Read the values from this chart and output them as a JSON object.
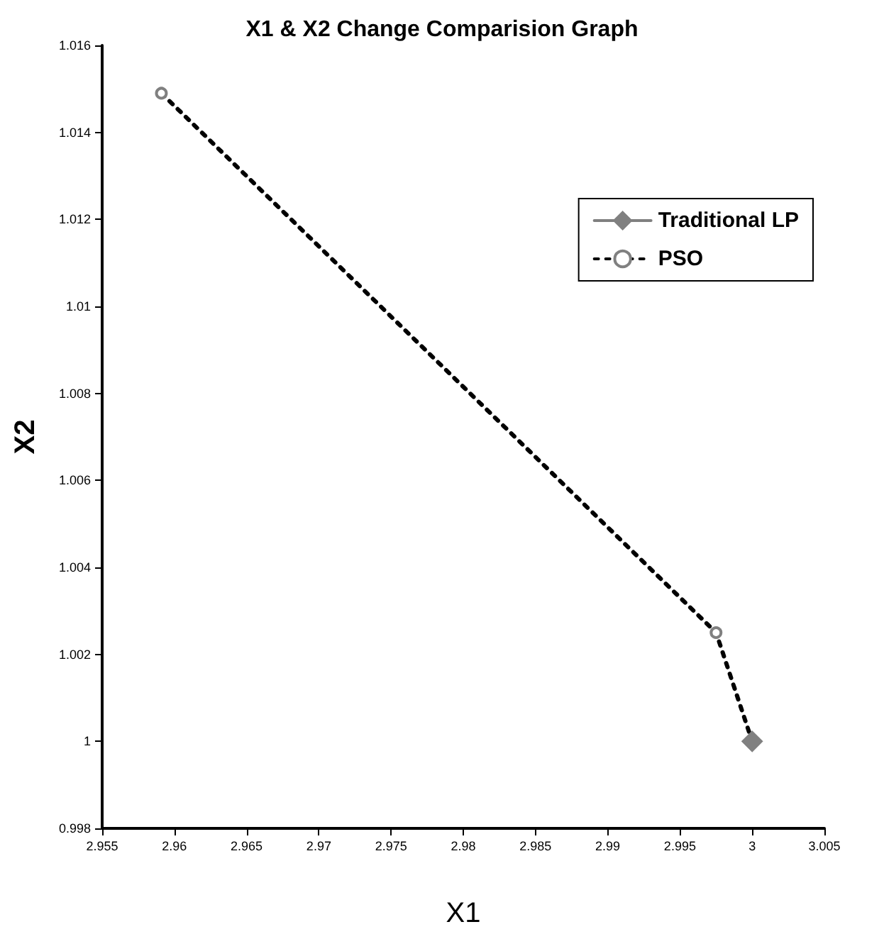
{
  "chart_data": {
    "type": "line",
    "title": "X1 & X2 Change Comparision Graph",
    "xlabel": "X1",
    "ylabel": "X2",
    "series": [
      {
        "name": "Traditional LP",
        "color": "#808080",
        "x": [
          3.0
        ],
        "values": [
          1.0
        ],
        "marker": "diamond",
        "line_style": "solid"
      },
      {
        "name": "PSO",
        "color": "#000000",
        "x": [
          2.9591,
          2.9975,
          3.0
        ],
        "values": [
          1.0149,
          1.0025,
          1.0
        ],
        "marker": "circle",
        "line_style": "dotted"
      }
    ],
    "xlim": [
      2.955,
      3.005
    ],
    "xticks": [
      2.955,
      2.96,
      2.965,
      2.97,
      2.975,
      2.98,
      2.985,
      2.99,
      2.995,
      3,
      3.005
    ],
    "ylim": [
      0.998,
      1.016
    ],
    "yticks": [
      0.998,
      1,
      1.002,
      1.004,
      1.006,
      1.008,
      1.01,
      1.012,
      1.014,
      1.016
    ],
    "grid": false,
    "legend": "top right"
  }
}
